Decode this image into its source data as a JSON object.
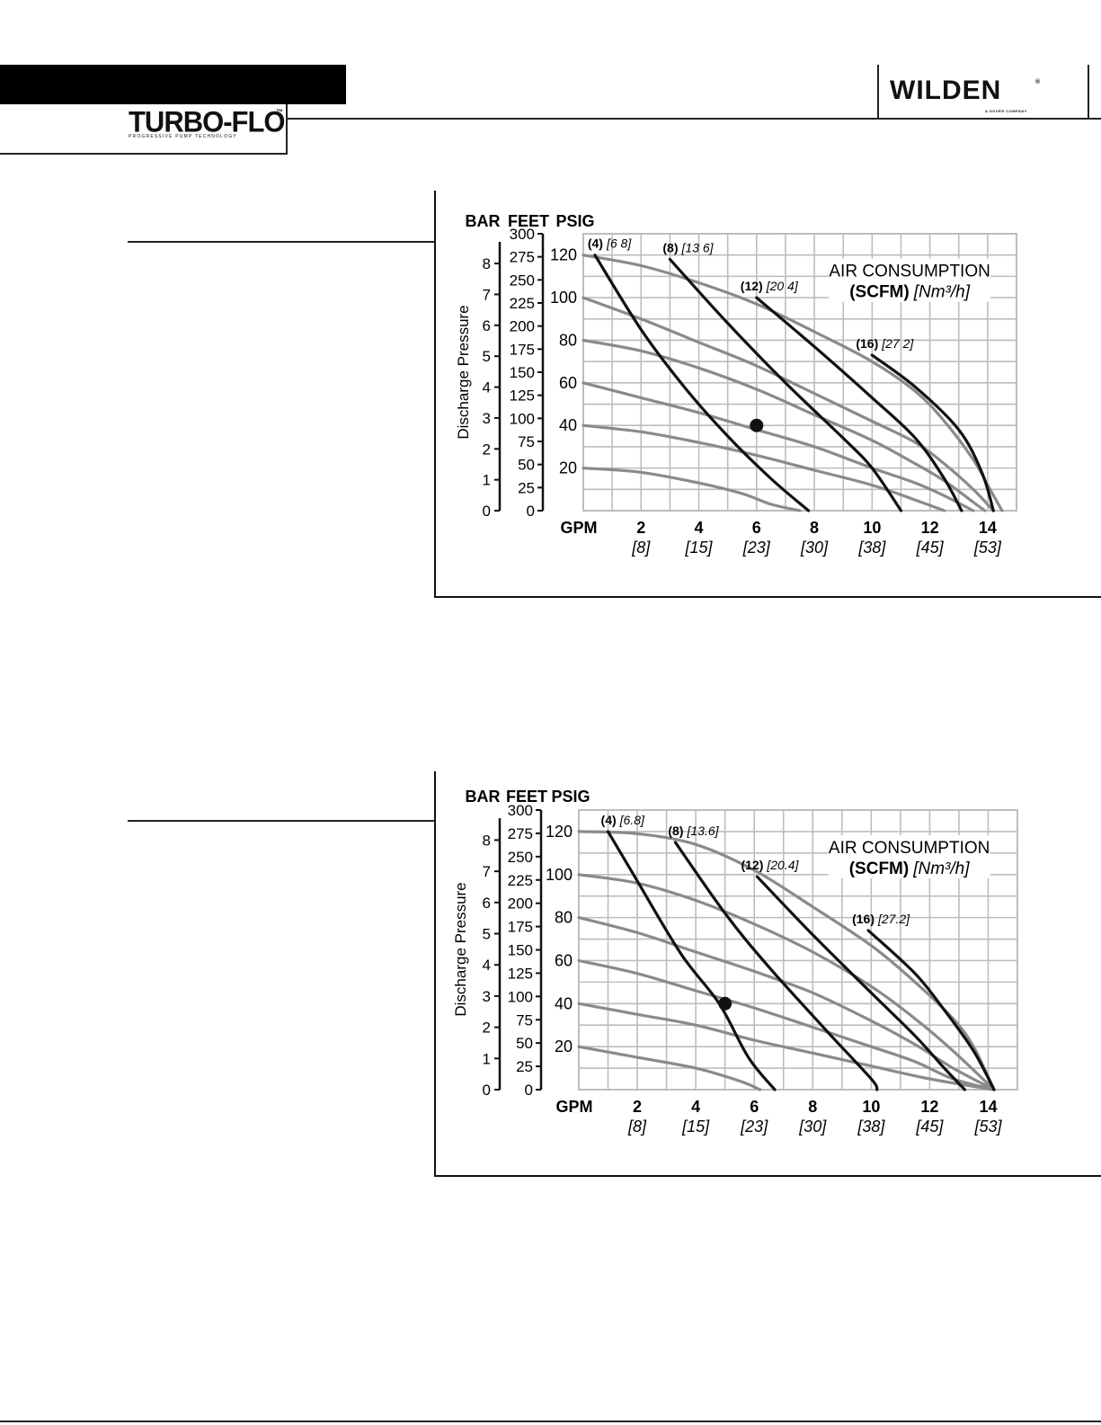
{
  "header": {
    "brand": "TURBO-FLO",
    "brand_tm": "™",
    "brand_tagline": "PROGRESSIVE PUMP TECHNOLOGY",
    "logo": "WILDEN",
    "logo_reg": "®",
    "logo_sub": "A DOVER COMPANY"
  },
  "colors": {
    "grid": "#bdbdbd",
    "air_curve": "#8a8a8a",
    "pressure_curve": "#111111",
    "point": "#111111"
  },
  "chart_data": [
    {
      "type": "line",
      "axis_headers": {
        "bar": "BAR",
        "feet": "FEET",
        "psig": "PSIG"
      },
      "ylabel": "Discharge Pressure",
      "x_unit_label": "GPM",
      "x_ticks": [
        "2",
        "4",
        "6",
        "8",
        "10",
        "12",
        "14"
      ],
      "x_ticks_metric": [
        "[8]",
        "[15]",
        "[23]",
        "[30]",
        "[38]",
        "[45]",
        "[53]"
      ],
      "bar_ticks": [
        "0",
        "1",
        "2",
        "3",
        "4",
        "5",
        "6",
        "7",
        "8"
      ],
      "feet_ticks": [
        "0",
        "25",
        "50",
        "75",
        "100",
        "125",
        "150",
        "175",
        "200",
        "225",
        "250",
        "275",
        "300"
      ],
      "psig_ticks": [
        "20",
        "40",
        "60",
        "80",
        "100",
        "120"
      ],
      "xlim": [
        0,
        15
      ],
      "ylim_psig": [
        0,
        130
      ],
      "legend_title": "AIR CONSUMPTION",
      "legend_unit_bold": "(SCFM)",
      "legend_unit_metric": "[Nm³/h]",
      "series_air_supply": [
        {
          "psig": 120,
          "points": [
            [
              0,
              120
            ],
            [
              2,
              115
            ],
            [
              4,
              107
            ],
            [
              6,
              97
            ],
            [
              8,
              84
            ],
            [
              10,
              70
            ],
            [
              11.5,
              56
            ],
            [
              12.5,
              42
            ],
            [
              13.5,
              24
            ],
            [
              14,
              12
            ],
            [
              14.5,
              0
            ]
          ]
        },
        {
          "psig": 100,
          "points": [
            [
              0,
              100
            ],
            [
              2,
              90
            ],
            [
              4,
              79
            ],
            [
              6,
              68
            ],
            [
              8,
              55
            ],
            [
              10,
              42
            ],
            [
              11.5,
              32
            ],
            [
              12.5,
              22
            ],
            [
              13.5,
              10
            ],
            [
              14.2,
              0
            ]
          ]
        },
        {
          "psig": 80,
          "points": [
            [
              0,
              80
            ],
            [
              2,
              75
            ],
            [
              4,
              67
            ],
            [
              6,
              57
            ],
            [
              8,
              45
            ],
            [
              10,
              33
            ],
            [
              11.5,
              22
            ],
            [
              12.5,
              14
            ],
            [
              13.5,
              4
            ],
            [
              13.9,
              0
            ]
          ]
        },
        {
          "psig": 60,
          "points": [
            [
              0,
              60
            ],
            [
              2,
              53
            ],
            [
              4,
              46
            ],
            [
              6,
              38
            ],
            [
              8,
              30
            ],
            [
              10,
              20
            ],
            [
              11.5,
              13
            ],
            [
              12.5,
              7
            ],
            [
              13.5,
              0
            ]
          ]
        },
        {
          "psig": 40,
          "points": [
            [
              0,
              40
            ],
            [
              2,
              37
            ],
            [
              4,
              32
            ],
            [
              6,
              26
            ],
            [
              8,
              19
            ],
            [
              10,
              12
            ],
            [
              11.5,
              5
            ],
            [
              12.5,
              0
            ]
          ]
        },
        {
          "psig": 20,
          "points": [
            [
              0,
              20
            ],
            [
              2,
              18
            ],
            [
              4,
              13
            ],
            [
              5.5,
              8
            ],
            [
              6.5,
              3
            ],
            [
              7.5,
              0
            ]
          ]
        }
      ],
      "series_consumption": [
        {
          "label_bold": "(4)",
          "label_italic": "[6 8]",
          "points": [
            [
              0.4,
              120
            ],
            [
              2,
              85
            ],
            [
              3.5,
              58
            ],
            [
              5,
              35
            ],
            [
              6.5,
              15
            ],
            [
              7.8,
              0
            ]
          ]
        },
        {
          "label_bold": "(8)",
          "label_italic": "[13 6]",
          "points": [
            [
              3,
              118
            ],
            [
              5,
              88
            ],
            [
              7,
              60
            ],
            [
              9,
              34
            ],
            [
              10,
              20
            ],
            [
              11,
              0
            ]
          ]
        },
        {
          "label_bold": "(12)",
          "label_italic": "[20 4]",
          "points": [
            [
              6,
              100
            ],
            [
              8,
              77
            ],
            [
              10,
              53
            ],
            [
              11.5,
              34
            ],
            [
              12.5,
              15
            ],
            [
              13.1,
              0
            ]
          ]
        },
        {
          "label_bold": "(16)",
          "label_italic": "[27 2]",
          "points": [
            [
              10,
              73
            ],
            [
              11.5,
              58
            ],
            [
              13,
              38
            ],
            [
              13.8,
              18
            ],
            [
              14.2,
              0
            ]
          ]
        }
      ],
      "operating_point": [
        6,
        40
      ]
    },
    {
      "type": "line",
      "axis_headers": {
        "bar": "BAR",
        "feet": "FEET",
        "psig": "PSIG"
      },
      "ylabel": "Discharge Pressure",
      "x_unit_label": "GPM",
      "x_ticks": [
        "2",
        "4",
        "6",
        "8",
        "10",
        "12",
        "14"
      ],
      "x_ticks_metric": [
        "[8]",
        "[15]",
        "[23]",
        "[30]",
        "[38]",
        "[45]",
        "[53]"
      ],
      "bar_ticks": [
        "0",
        "1",
        "2",
        "3",
        "4",
        "5",
        "6",
        "7",
        "8"
      ],
      "feet_ticks": [
        "0",
        "25",
        "50",
        "75",
        "100",
        "125",
        "150",
        "175",
        "200",
        "225",
        "250",
        "275",
        "300"
      ],
      "psig_ticks": [
        "20",
        "40",
        "60",
        "80",
        "100",
        "120"
      ],
      "xlim": [
        0,
        15
      ],
      "ylim_psig": [
        0,
        130
      ],
      "legend_title": "AIR CONSUMPTION",
      "legend_unit_bold": "(SCFM)",
      "legend_unit_metric": "[Nm³/h]",
      "series_air_supply": [
        {
          "psig": 120,
          "points": [
            [
              0,
              120
            ],
            [
              2,
              119
            ],
            [
              4,
              114
            ],
            [
              6,
              102
            ],
            [
              8,
              85
            ],
            [
              10,
              67
            ],
            [
              11.5,
              50
            ],
            [
              12.8,
              33
            ],
            [
              13.5,
              20
            ],
            [
              14.2,
              0
            ]
          ]
        },
        {
          "psig": 100,
          "points": [
            [
              0,
              100
            ],
            [
              2,
              96
            ],
            [
              4,
              88
            ],
            [
              6,
              77
            ],
            [
              8,
              64
            ],
            [
              10,
              48
            ],
            [
              11.5,
              33
            ],
            [
              12.8,
              18
            ],
            [
              14.2,
              0
            ]
          ]
        },
        {
          "psig": 80,
          "points": [
            [
              0,
              80
            ],
            [
              2,
              73
            ],
            [
              4,
              64
            ],
            [
              6,
              55
            ],
            [
              8,
              45
            ],
            [
              10,
              32
            ],
            [
              11.5,
              21
            ],
            [
              12.8,
              10
            ],
            [
              14.2,
              0
            ]
          ]
        },
        {
          "psig": 60,
          "points": [
            [
              0,
              60
            ],
            [
              2,
              54
            ],
            [
              4,
              46
            ],
            [
              6,
              38
            ],
            [
              8,
              29
            ],
            [
              10,
              20
            ],
            [
              11.5,
              13
            ],
            [
              12.8,
              5
            ],
            [
              14.2,
              0
            ]
          ]
        },
        {
          "psig": 40,
          "points": [
            [
              0,
              40
            ],
            [
              2,
              35
            ],
            [
              4,
              30
            ],
            [
              6,
              23
            ],
            [
              8,
              17
            ],
            [
              10,
              11
            ],
            [
              12,
              5
            ],
            [
              14.2,
              0
            ]
          ]
        },
        {
          "psig": 20,
          "points": [
            [
              0,
              20
            ],
            [
              2,
              15
            ],
            [
              4,
              10
            ],
            [
              5.5,
              4
            ],
            [
              6.2,
              0
            ]
          ]
        }
      ],
      "series_consumption": [
        {
          "label_bold": "(4)",
          "label_italic": "[6.8]",
          "points": [
            [
              1,
              120
            ],
            [
              2,
              97
            ],
            [
              3.5,
              63
            ],
            [
              4.8,
              40
            ],
            [
              5.8,
              15
            ],
            [
              6.7,
              0
            ]
          ]
        },
        {
          "label_bold": "(8)",
          "label_italic": "[13.6]",
          "points": [
            [
              3.3,
              115
            ],
            [
              5,
              82
            ],
            [
              6.5,
              57
            ],
            [
              8.5,
              27
            ],
            [
              10,
              5
            ],
            [
              10.2,
              0
            ]
          ]
        },
        {
          "label_bold": "(12)",
          "label_italic": "[20.4]",
          "points": [
            [
              6.1,
              99
            ],
            [
              8,
              72
            ],
            [
              10,
              45
            ],
            [
              11.5,
              25
            ],
            [
              12.5,
              10
            ],
            [
              13.2,
              0
            ]
          ]
        },
        {
          "label_bold": "(16)",
          "label_italic": "[27.2]",
          "points": [
            [
              9.9,
              74
            ],
            [
              11.5,
              54
            ],
            [
              12.5,
              37
            ],
            [
              13.5,
              18
            ],
            [
              14.2,
              0
            ]
          ]
        }
      ],
      "operating_point": [
        5,
        40
      ]
    }
  ]
}
